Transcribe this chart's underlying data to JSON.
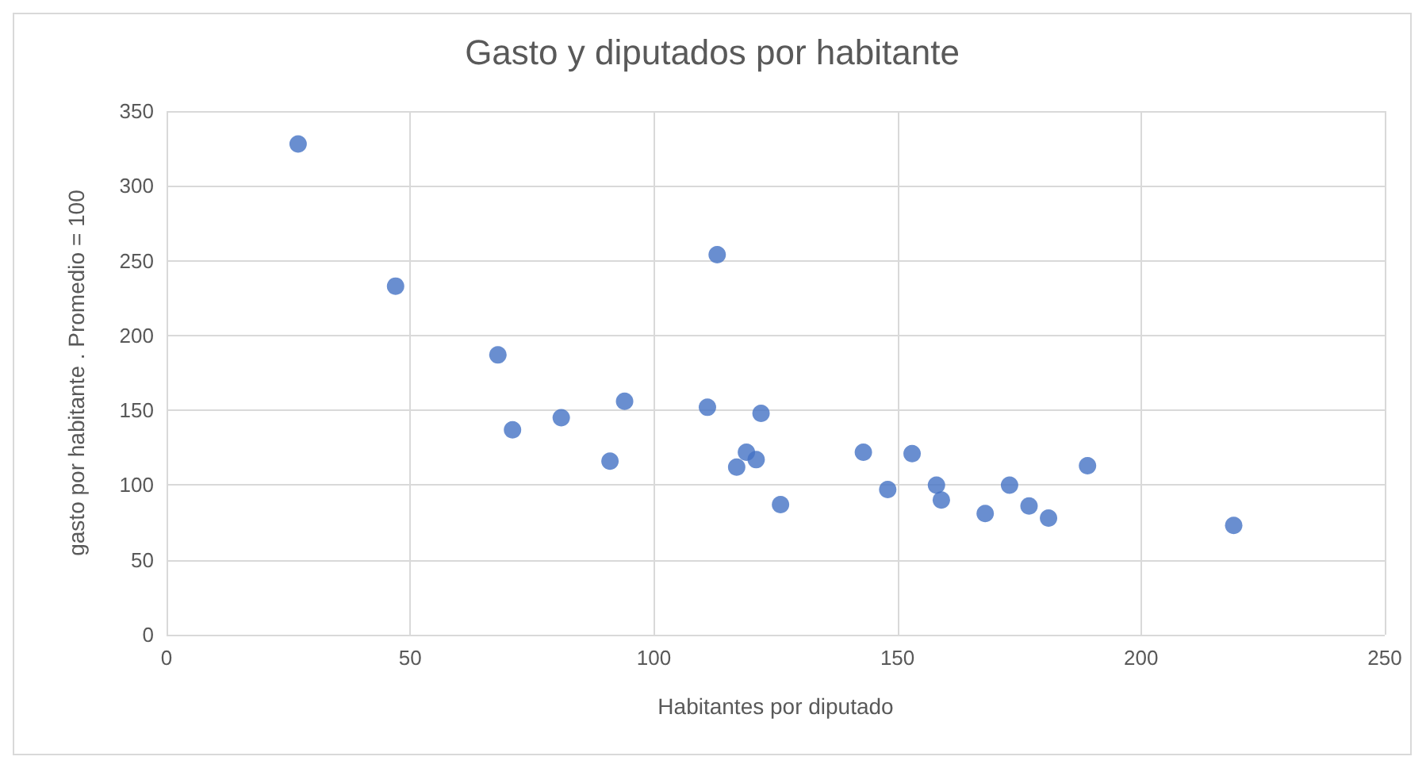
{
  "chart_data": {
    "type": "scatter",
    "title": "Gasto y diputados por habitante",
    "xlabel": "Habitantes por diputado",
    "ylabel": "gasto por habitante . Promedio = 100",
    "series": [
      {
        "color": "#4472c4",
        "x": [
          27,
          47,
          68,
          71,
          81,
          91,
          94,
          111,
          113,
          117,
          119,
          121,
          122,
          126,
          143,
          148,
          153,
          158,
          159,
          168,
          173,
          177,
          181,
          189,
          219
        ],
        "values": [
          328,
          233,
          187,
          137,
          145,
          116,
          156,
          152,
          254,
          112,
          122,
          117,
          148,
          87,
          122,
          97,
          121,
          100,
          90,
          81,
          100,
          86,
          78,
          113,
          73
        ]
      }
    ],
    "xlim": [
      0,
      250
    ],
    "xticks": [
      0,
      50,
      100,
      150,
      200,
      250
    ],
    "ylim": [
      0,
      350
    ],
    "yticks": [
      0,
      50,
      100,
      150,
      200,
      250,
      300,
      350
    ],
    "grid": true,
    "marker": "circle"
  }
}
